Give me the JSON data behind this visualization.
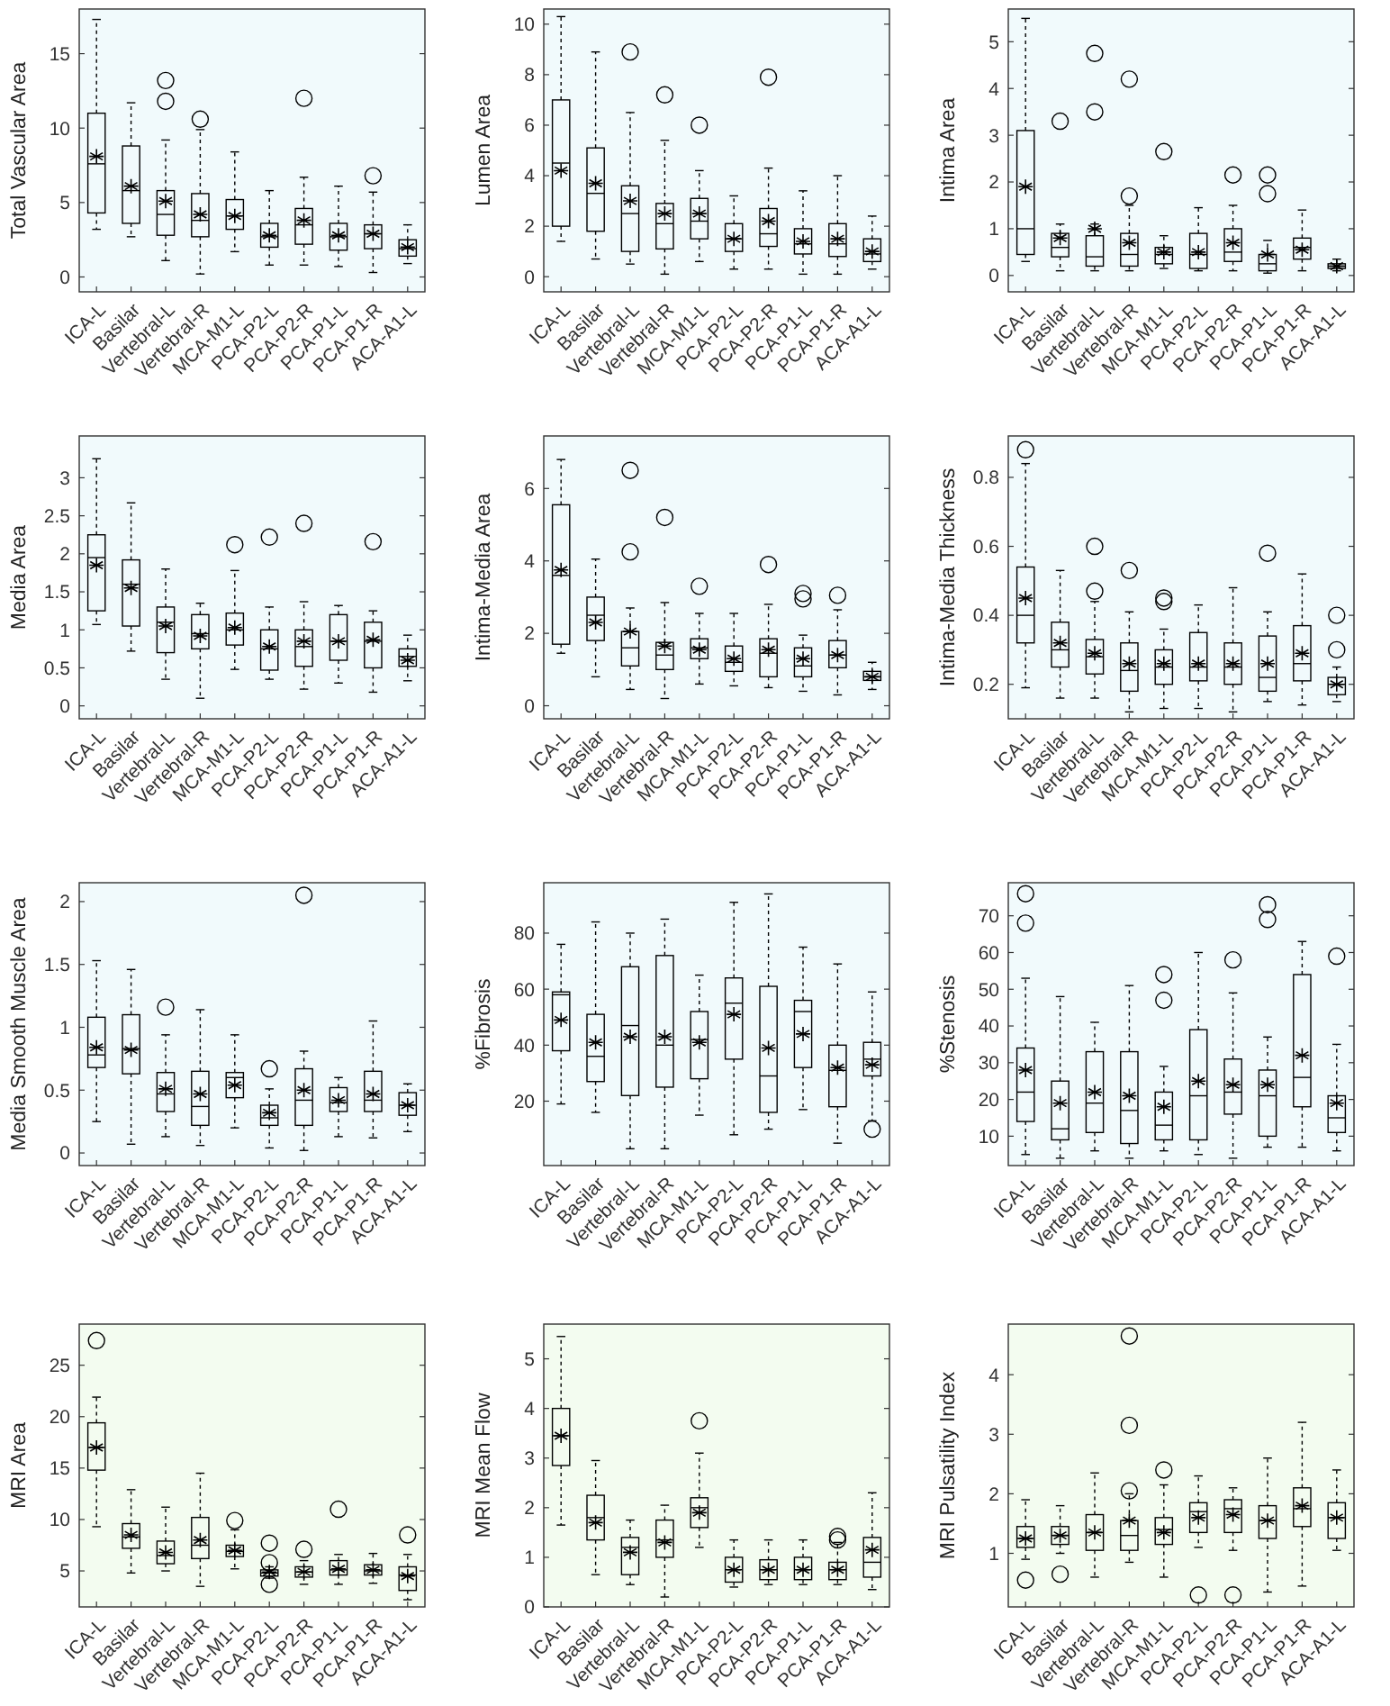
{
  "chart_data": [
    {
      "type": "box",
      "ylabel": "Total Vascular Area",
      "categories": [
        "ICA-L",
        "Basilar",
        "Vertebral-L",
        "Vertebral-R",
        "MCA-M1-L",
        "PCA-P2-L",
        "PCA-P2-R",
        "PCA-P1-L",
        "PCA-P1-R",
        "ACA-A1-L"
      ],
      "ylim": [
        -1,
        18
      ],
      "yticks": [
        0,
        5,
        10,
        15
      ],
      "boxes": [
        {
          "low": 3.2,
          "q1": 4.3,
          "median": 7.6,
          "q3": 11,
          "high": 17.3,
          "mean": 8.1
        },
        {
          "low": 2.7,
          "q1": 3.6,
          "median": 5.8,
          "q3": 8.8,
          "high": 11.7,
          "mean": 6.1
        },
        {
          "low": 1.1,
          "q1": 2.8,
          "median": 4.2,
          "q3": 5.8,
          "high": 9.2,
          "mean": 5.1,
          "outliers": [
            11.8,
            13.2
          ]
        },
        {
          "low": 0.2,
          "q1": 2.7,
          "median": 3.8,
          "q3": 5.6,
          "high": 9.9,
          "mean": 4.2,
          "outliers": [
            10.6
          ]
        },
        {
          "low": 1.7,
          "q1": 3.2,
          "median": 4.1,
          "q3": 5.2,
          "high": 8.4,
          "mean": 4.1
        },
        {
          "low": 0.8,
          "q1": 2,
          "median": 2.7,
          "q3": 3.6,
          "high": 5.8,
          "mean": 2.8
        },
        {
          "low": 0.8,
          "q1": 2.2,
          "median": 3.5,
          "q3": 4.6,
          "high": 6.7,
          "mean": 3.8,
          "outliers": [
            12
          ]
        },
        {
          "low": 0.7,
          "q1": 1.8,
          "median": 2.7,
          "q3": 3.6,
          "high": 6.1,
          "mean": 2.8
        },
        {
          "low": 0.3,
          "q1": 1.9,
          "median": 2.9,
          "q3": 3.5,
          "high": 5.7,
          "mean": 2.9,
          "outliers": [
            6.8
          ]
        },
        {
          "low": 0.9,
          "q1": 1.4,
          "median": 1.9,
          "q3": 2.5,
          "high": 3.5,
          "mean": 2
        }
      ]
    },
    {
      "type": "box",
      "ylabel": "Lumen Area",
      "categories": [
        "ICA-L",
        "Basilar",
        "Vertebral-L",
        "Vertebral-R",
        "MCA-M1-L",
        "PCA-P2-L",
        "PCA-P2-R",
        "PCA-P1-L",
        "PCA-P1-R",
        "ACA-A1-L"
      ],
      "ylim": [
        -0.6,
        10.6
      ],
      "yticks": [
        0,
        2,
        4,
        6,
        8,
        10
      ],
      "boxes": [
        {
          "low": 1.4,
          "q1": 2,
          "median": 4.5,
          "q3": 7,
          "high": 10.3,
          "mean": 4.2
        },
        {
          "low": 0.7,
          "q1": 1.8,
          "median": 3.3,
          "q3": 5.1,
          "high": 8.9,
          "mean": 3.7
        },
        {
          "low": 0.5,
          "q1": 1,
          "median": 2.5,
          "q3": 3.6,
          "high": 6.5,
          "mean": 3,
          "outliers": [
            8.9
          ]
        },
        {
          "low": 0.1,
          "q1": 1.1,
          "median": 2.1,
          "q3": 2.9,
          "high": 5.4,
          "mean": 2.5,
          "outliers": [
            7.2
          ]
        },
        {
          "low": 0.6,
          "q1": 1.5,
          "median": 2.2,
          "q3": 3.1,
          "high": 4.2,
          "mean": 2.5,
          "outliers": [
            6
          ]
        },
        {
          "low": 0.3,
          "q1": 1,
          "median": 1.5,
          "q3": 2.1,
          "high": 3.2,
          "mean": 1.5
        },
        {
          "low": 0.3,
          "q1": 1.2,
          "median": 1.7,
          "q3": 2.7,
          "high": 4.3,
          "mean": 2.2,
          "outliers": [
            7.9
          ]
        },
        {
          "low": 0.1,
          "q1": 0.9,
          "median": 1.3,
          "q3": 1.9,
          "high": 3.4,
          "mean": 1.4
        },
        {
          "low": 0.1,
          "q1": 0.8,
          "median": 1.3,
          "q3": 2.1,
          "high": 4,
          "mean": 1.5
        },
        {
          "low": 0.3,
          "q1": 0.6,
          "median": 0.9,
          "q3": 1.5,
          "high": 2.4,
          "mean": 1
        }
      ]
    },
    {
      "type": "box",
      "ylabel": "Intima Area",
      "categories": [
        "ICA-L",
        "Basilar",
        "Vertebral-L",
        "Vertebral-R",
        "MCA-M1-L",
        "PCA-P2-L",
        "PCA-P2-R",
        "PCA-P1-L",
        "PCA-P1-R",
        "ACA-A1-L"
      ],
      "ylim": [
        -0.35,
        5.7
      ],
      "yticks": [
        0,
        1,
        2,
        3,
        4,
        5
      ],
      "boxes": [
        {
          "low": 0.3,
          "q1": 0.45,
          "median": 1,
          "q3": 3.1,
          "high": 5.5,
          "mean": 1.9
        },
        {
          "low": 0.1,
          "q1": 0.4,
          "median": 0.6,
          "q3": 0.9,
          "high": 1.1,
          "mean": 0.8,
          "outliers": [
            3.3
          ]
        },
        {
          "low": 0.1,
          "q1": 0.2,
          "median": 0.4,
          "q3": 0.85,
          "high": 1.1,
          "mean": 1,
          "outliers": [
            3.5,
            4.75
          ]
        },
        {
          "low": 0.1,
          "q1": 0.2,
          "median": 0.45,
          "q3": 0.9,
          "high": 1.5,
          "mean": 0.7,
          "outliers": [
            1.7,
            4.2
          ]
        },
        {
          "low": 0.15,
          "q1": 0.25,
          "median": 0.45,
          "q3": 0.6,
          "high": 0.85,
          "mean": 0.5,
          "outliers": [
            2.65
          ]
        },
        {
          "low": 0.1,
          "q1": 0.15,
          "median": 0.45,
          "q3": 0.9,
          "high": 1.45,
          "mean": 0.5
        },
        {
          "low": 0.1,
          "q1": 0.3,
          "median": 0.5,
          "q3": 1,
          "high": 1.5,
          "mean": 0.7,
          "outliers": [
            2.15
          ]
        },
        {
          "low": 0.05,
          "q1": 0.1,
          "median": 0.25,
          "q3": 0.45,
          "high": 0.75,
          "mean": 0.45,
          "outliers": [
            1.75,
            2.15
          ]
        },
        {
          "low": 0.1,
          "q1": 0.35,
          "median": 0.6,
          "q3": 0.8,
          "high": 1.4,
          "mean": 0.55
        },
        {
          "low": 0.1,
          "q1": 0.15,
          "median": 0.2,
          "q3": 0.25,
          "high": 0.35,
          "mean": 0.2
        }
      ]
    },
    {
      "type": "box",
      "ylabel": "Media Area",
      "categories": [
        "ICA-L",
        "Basilar",
        "Vertebral-L",
        "Vertebral-R",
        "MCA-M1-L",
        "PCA-P2-L",
        "PCA-P2-R",
        "PCA-P1-L",
        "PCA-P1-R",
        "ACA-A1-L"
      ],
      "ylim": [
        -0.17,
        3.55
      ],
      "yticks": [
        0,
        0.5,
        1,
        1.5,
        2,
        2.5,
        3
      ],
      "boxes": [
        {
          "low": 1.07,
          "q1": 1.25,
          "median": 1.95,
          "q3": 2.25,
          "high": 3.25,
          "mean": 1.85
        },
        {
          "low": 0.72,
          "q1": 1.05,
          "median": 1.6,
          "q3": 1.92,
          "high": 2.67,
          "mean": 1.55
        },
        {
          "low": 0.35,
          "q1": 0.7,
          "median": 1.1,
          "q3": 1.3,
          "high": 1.8,
          "mean": 1.05
        },
        {
          "low": 0.1,
          "q1": 0.75,
          "median": 0.95,
          "q3": 1.2,
          "high": 1.35,
          "mean": 0.92
        },
        {
          "low": 0.48,
          "q1": 0.8,
          "median": 1,
          "q3": 1.22,
          "high": 1.78,
          "mean": 1.03,
          "outliers": [
            2.12
          ]
        },
        {
          "low": 0.35,
          "q1": 0.47,
          "median": 0.75,
          "q3": 1,
          "high": 1.3,
          "mean": 0.78,
          "outliers": [
            2.22
          ]
        },
        {
          "low": 0.22,
          "q1": 0.52,
          "median": 0.78,
          "q3": 1,
          "high": 1.37,
          "mean": 0.85,
          "outliers": [
            2.4
          ]
        },
        {
          "low": 0.3,
          "q1": 0.6,
          "median": 0.85,
          "q3": 1.2,
          "high": 1.32,
          "mean": 0.85
        },
        {
          "low": 0.18,
          "q1": 0.5,
          "median": 0.85,
          "q3": 1.1,
          "high": 1.25,
          "mean": 0.87,
          "outliers": [
            2.16
          ]
        },
        {
          "low": 0.33,
          "q1": 0.52,
          "median": 0.65,
          "q3": 0.75,
          "high": 0.93,
          "mean": 0.6
        }
      ]
    },
    {
      "type": "box",
      "ylabel": "Intima-Media Area",
      "categories": [
        "ICA-L",
        "Basilar",
        "Vertebral-L",
        "Vertebral-R",
        "MCA-M1-L",
        "PCA-P2-L",
        "PCA-P2-R",
        "PCA-P1-L",
        "PCA-P1-R",
        "ACA-A1-L"
      ],
      "ylim": [
        -0.36,
        7.45
      ],
      "yticks": [
        0,
        2,
        4,
        6
      ],
      "boxes": [
        {
          "low": 1.45,
          "q1": 1.7,
          "median": 3.6,
          "q3": 5.55,
          "high": 6.8,
          "mean": 3.75
        },
        {
          "low": 0.8,
          "q1": 1.8,
          "median": 2.5,
          "q3": 3,
          "high": 4.05,
          "mean": 2.3
        },
        {
          "low": 0.45,
          "q1": 1.1,
          "median": 1.6,
          "q3": 2.05,
          "high": 2.7,
          "mean": 2.05,
          "outliers": [
            4.25,
            6.5
          ]
        },
        {
          "low": 0.2,
          "q1": 1,
          "median": 1.4,
          "q3": 1.75,
          "high": 2.85,
          "mean": 1.65,
          "outliers": [
            5.2
          ]
        },
        {
          "low": 0.6,
          "q1": 1.3,
          "median": 1.6,
          "q3": 1.85,
          "high": 2.55,
          "mean": 1.55,
          "outliers": [
            3.3
          ]
        },
        {
          "low": 0.55,
          "q1": 0.95,
          "median": 1.2,
          "q3": 1.65,
          "high": 2.55,
          "mean": 1.3
        },
        {
          "low": 0.5,
          "q1": 0.8,
          "median": 1.45,
          "q3": 1.85,
          "high": 2.8,
          "mean": 1.55,
          "outliers": [
            3.9
          ]
        },
        {
          "low": 0.4,
          "q1": 0.8,
          "median": 1.1,
          "q3": 1.6,
          "high": 1.95,
          "mean": 1.3,
          "outliers": [
            2.95,
            3.1
          ]
        },
        {
          "low": 0.3,
          "q1": 1.05,
          "median": 1.4,
          "q3": 1.8,
          "high": 2.65,
          "mean": 1.4,
          "outliers": [
            3.05
          ]
        },
        {
          "low": 0.45,
          "q1": 0.7,
          "median": 0.8,
          "q3": 0.95,
          "high": 1.2,
          "mean": 0.8
        }
      ]
    },
    {
      "type": "box",
      "ylabel": "Intima-Media Thickness",
      "categories": [
        "ICA-L",
        "Basilar",
        "Vertebral-L",
        "Vertebral-R",
        "MCA-M1-L",
        "PCA-P2-L",
        "PCA-P2-R",
        "PCA-P1-L",
        "PCA-P1-R",
        "ACA-A1-L"
      ],
      "ylim": [
        0.1,
        0.92
      ],
      "yticks": [
        0.2,
        0.4,
        0.6,
        0.8
      ],
      "boxes": [
        {
          "low": 0.19,
          "q1": 0.32,
          "median": 0.4,
          "q3": 0.54,
          "high": 0.84,
          "mean": 0.45,
          "outliers": [
            0.88
          ]
        },
        {
          "low": 0.16,
          "q1": 0.25,
          "median": 0.3,
          "q3": 0.38,
          "high": 0.53,
          "mean": 0.32
        },
        {
          "low": 0.16,
          "q1": 0.23,
          "median": 0.28,
          "q3": 0.33,
          "high": 0.44,
          "mean": 0.29,
          "outliers": [
            0.47,
            0.6
          ]
        },
        {
          "low": 0.12,
          "q1": 0.18,
          "median": 0.24,
          "q3": 0.32,
          "high": 0.41,
          "mean": 0.26,
          "outliers": [
            0.53
          ]
        },
        {
          "low": 0.13,
          "q1": 0.2,
          "median": 0.25,
          "q3": 0.3,
          "high": 0.36,
          "mean": 0.26,
          "outliers": [
            0.44,
            0.45
          ]
        },
        {
          "low": 0.13,
          "q1": 0.21,
          "median": 0.25,
          "q3": 0.35,
          "high": 0.43,
          "mean": 0.26
        },
        {
          "low": 0.12,
          "q1": 0.2,
          "median": 0.25,
          "q3": 0.32,
          "high": 0.48,
          "mean": 0.26
        },
        {
          "low": 0.15,
          "q1": 0.18,
          "median": 0.22,
          "q3": 0.34,
          "high": 0.41,
          "mean": 0.26,
          "outliers": [
            0.58
          ]
        },
        {
          "low": 0.14,
          "q1": 0.21,
          "median": 0.26,
          "q3": 0.37,
          "high": 0.52,
          "mean": 0.29
        },
        {
          "low": 0.15,
          "q1": 0.17,
          "median": 0.2,
          "q3": 0.22,
          "high": 0.25,
          "mean": 0.2,
          "outliers": [
            0.3,
            0.4
          ]
        }
      ]
    },
    {
      "type": "box",
      "ylabel": "Media Smooth Muscle Area",
      "categories": [
        "ICA-L",
        "Basilar",
        "Vertebral-L",
        "Vertebral-R",
        "MCA-M1-L",
        "PCA-P2-L",
        "PCA-P2-R",
        "PCA-P1-L",
        "PCA-P1-R",
        "ACA-A1-L"
      ],
      "ylim": [
        -0.1,
        2.15
      ],
      "yticks": [
        0,
        0.5,
        1,
        1.5,
        2
      ],
      "boxes": [
        {
          "low": 0.25,
          "q1": 0.68,
          "median": 0.78,
          "q3": 1.08,
          "high": 1.53,
          "mean": 0.84
        },
        {
          "low": 0.07,
          "q1": 0.63,
          "median": 0.83,
          "q3": 1.1,
          "high": 1.46,
          "mean": 0.82
        },
        {
          "low": 0.13,
          "q1": 0.33,
          "median": 0.47,
          "q3": 0.64,
          "high": 0.94,
          "mean": 0.51,
          "outliers": [
            1.16
          ]
        },
        {
          "low": 0.06,
          "q1": 0.22,
          "median": 0.37,
          "q3": 0.65,
          "high": 1.14,
          "mean": 0.47
        },
        {
          "low": 0.2,
          "q1": 0.44,
          "median": 0.6,
          "q3": 0.64,
          "high": 0.94,
          "mean": 0.54
        },
        {
          "low": 0.04,
          "q1": 0.22,
          "median": 0.28,
          "q3": 0.38,
          "high": 0.51,
          "mean": 0.32,
          "outliers": [
            0.67
          ]
        },
        {
          "low": 0.02,
          "q1": 0.22,
          "median": 0.42,
          "q3": 0.67,
          "high": 0.81,
          "mean": 0.5,
          "outliers": [
            2.05
          ]
        },
        {
          "low": 0.13,
          "q1": 0.33,
          "median": 0.4,
          "q3": 0.52,
          "high": 0.6,
          "mean": 0.42
        },
        {
          "low": 0.12,
          "q1": 0.33,
          "median": 0.42,
          "q3": 0.65,
          "high": 1.05,
          "mean": 0.47
        },
        {
          "low": 0.17,
          "q1": 0.3,
          "median": 0.38,
          "q3": 0.48,
          "high": 0.55,
          "mean": 0.38
        }
      ]
    },
    {
      "type": "box",
      "ylabel": "%Fibrosis",
      "categories": [
        "ICA-L",
        "Basilar",
        "Vertebral-L",
        "Vertebral-R",
        "MCA-M1-L",
        "PCA-P2-L",
        "PCA-P2-R",
        "PCA-P1-L",
        "PCA-P1-R",
        "ACA-A1-L"
      ],
      "ylim": [
        -3,
        98
      ],
      "yticks": [
        20,
        40,
        60,
        80
      ],
      "boxes": [
        {
          "low": 19,
          "q1": 38,
          "median": 58,
          "q3": 59,
          "high": 76,
          "mean": 49
        },
        {
          "low": 16,
          "q1": 27,
          "median": 36,
          "q3": 51,
          "high": 84,
          "mean": 41
        },
        {
          "low": 3,
          "q1": 22,
          "median": 47,
          "q3": 68,
          "high": 80,
          "mean": 43
        },
        {
          "low": 3,
          "q1": 25,
          "median": 40,
          "q3": 72,
          "high": 85,
          "mean": 43
        },
        {
          "low": 15,
          "q1": 28,
          "median": 42,
          "q3": 52,
          "high": 65,
          "mean": 41
        },
        {
          "low": 8,
          "q1": 35,
          "median": 55,
          "q3": 64,
          "high": 91,
          "mean": 51
        },
        {
          "low": 10,
          "q1": 16,
          "median": 29,
          "q3": 61,
          "high": 94,
          "mean": 39
        },
        {
          "low": 17,
          "q1": 32,
          "median": 52,
          "q3": 56,
          "high": 75,
          "mean": 44
        },
        {
          "low": 5,
          "q1": 18,
          "median": 31,
          "q3": 40,
          "high": 69,
          "mean": 32
        },
        {
          "low": 13,
          "q1": 29,
          "median": 35,
          "q3": 41,
          "high": 59,
          "mean": 33,
          "outliers": [
            10
          ]
        }
      ]
    },
    {
      "type": "box",
      "ylabel": "%Stenosis",
      "categories": [
        "ICA-L",
        "Basilar",
        "Vertebral-L",
        "Vertebral-R",
        "MCA-M1-L",
        "PCA-P2-L",
        "PCA-P2-R",
        "PCA-P1-L",
        "PCA-P1-R",
        "ACA-A1-L"
      ],
      "ylim": [
        2,
        79
      ],
      "yticks": [
        10,
        20,
        30,
        40,
        50,
        60,
        70
      ],
      "boxes": [
        {
          "low": 5,
          "q1": 14,
          "median": 22,
          "q3": 34,
          "high": 53,
          "mean": 28,
          "outliers": [
            68,
            76
          ]
        },
        {
          "low": 4,
          "q1": 9,
          "median": 12,
          "q3": 25,
          "high": 48,
          "mean": 19
        },
        {
          "low": 6,
          "q1": 11,
          "median": 19,
          "q3": 33,
          "high": 41,
          "mean": 22
        },
        {
          "low": 4,
          "q1": 8,
          "median": 17,
          "q3": 33,
          "high": 51,
          "mean": 21
        },
        {
          "low": 6,
          "q1": 9,
          "median": 13,
          "q3": 22,
          "high": 29,
          "mean": 18,
          "outliers": [
            47,
            54
          ]
        },
        {
          "low": 5,
          "q1": 9,
          "median": 21,
          "q3": 39,
          "high": 60,
          "mean": 25
        },
        {
          "low": 4,
          "q1": 16,
          "median": 22,
          "q3": 31,
          "high": 49,
          "mean": 24,
          "outliers": [
            58
          ]
        },
        {
          "low": 7,
          "q1": 10,
          "median": 21,
          "q3": 28,
          "high": 37,
          "mean": 24,
          "outliers": [
            69,
            73
          ]
        },
        {
          "low": 7,
          "q1": 18,
          "median": 26,
          "q3": 54,
          "high": 63,
          "mean": 32
        },
        {
          "low": 6,
          "q1": 11,
          "median": 15,
          "q3": 21,
          "high": 35,
          "mean": 19,
          "outliers": [
            59
          ]
        }
      ]
    },
    {
      "type": "box",
      "ylabel": "MRI Area",
      "categories": [
        "ICA-L",
        "Basilar",
        "Vertebral-L",
        "Vertebral-R",
        "MCA-M1-L",
        "PCA-P2-L",
        "PCA-P2-R",
        "PCA-P1-L",
        "PCA-P1-R",
        "ACA-A1-L"
      ],
      "ylim": [
        1.5,
        29
      ],
      "yticks": [
        5,
        10,
        15,
        20,
        25
      ],
      "boxes": [
        {
          "low": 9.3,
          "q1": 14.8,
          "median": 17,
          "q3": 19.4,
          "high": 21.9,
          "mean": 17,
          "outliers": [
            27.4
          ]
        },
        {
          "low": 4.8,
          "q1": 7.2,
          "median": 8.3,
          "q3": 9.6,
          "high": 12.9,
          "mean": 8.5
        },
        {
          "low": 5,
          "q1": 5.7,
          "median": 6.5,
          "q3": 7.9,
          "high": 11.2,
          "mean": 6.8
        },
        {
          "low": 3.5,
          "q1": 6.2,
          "median": 7.5,
          "q3": 10.2,
          "high": 14.5,
          "mean": 8
        },
        {
          "low": 5.2,
          "q1": 6.4,
          "median": 6.9,
          "q3": 7.5,
          "high": 9,
          "mean": 7,
          "outliers": [
            9.9
          ]
        },
        {
          "low": 4.3,
          "q1": 4.5,
          "median": 4.8,
          "q3": 5.1,
          "high": 5.4,
          "mean": 4.9,
          "outliers": [
            3.7,
            5.8,
            7.7
          ]
        },
        {
          "low": 3.7,
          "q1": 4.4,
          "median": 4.9,
          "q3": 5.4,
          "high": 6,
          "mean": 4.9,
          "outliers": [
            7.1
          ]
        },
        {
          "low": 3.7,
          "q1": 4.6,
          "median": 5.1,
          "q3": 6,
          "high": 6.6,
          "mean": 5.2,
          "outliers": [
            11
          ]
        },
        {
          "low": 3.8,
          "q1": 4.6,
          "median": 5,
          "q3": 5.6,
          "high": 6.7,
          "mean": 5.1
        },
        {
          "low": 2.2,
          "q1": 3.1,
          "median": 4.6,
          "q3": 5.4,
          "high": 6.6,
          "mean": 4.5,
          "outliers": [
            8.5
          ]
        }
      ]
    },
    {
      "type": "box",
      "ylabel": "MRI Mean Flow",
      "categories": [
        "ICA-L",
        "Basilar",
        "Vertebral-L",
        "Vertebral-R",
        "MCA-M1-L",
        "PCA-P2-L",
        "PCA-P2-R",
        "PCA-P1-L",
        "PCA-P1-R",
        "ACA-A1-L"
      ],
      "ylim": [
        0,
        5.7
      ],
      "yticks": [
        0,
        1,
        2,
        3,
        4,
        5
      ],
      "boxes": [
        {
          "low": 1.65,
          "q1": 2.85,
          "median": 3.45,
          "q3": 4,
          "high": 5.45,
          "mean": 3.45
        },
        {
          "low": 0.65,
          "q1": 1.35,
          "median": 1.8,
          "q3": 2.25,
          "high": 2.95,
          "mean": 1.7
        },
        {
          "low": 0.45,
          "q1": 0.65,
          "median": 1.2,
          "q3": 1.4,
          "high": 1.75,
          "mean": 1.1
        },
        {
          "low": 0.2,
          "q1": 1,
          "median": 1.35,
          "q3": 1.75,
          "high": 2.05,
          "mean": 1.3
        },
        {
          "low": 1.2,
          "q1": 1.6,
          "median": 2,
          "q3": 2.2,
          "high": 3.1,
          "mean": 1.9,
          "outliers": [
            3.75
          ]
        },
        {
          "low": 0.4,
          "q1": 0.5,
          "median": 0.75,
          "q3": 1,
          "high": 1.35,
          "mean": 0.75
        },
        {
          "low": 0.45,
          "q1": 0.55,
          "median": 0.75,
          "q3": 0.95,
          "high": 1.35,
          "mean": 0.75
        },
        {
          "low": 0.45,
          "q1": 0.55,
          "median": 0.75,
          "q3": 1,
          "high": 1.35,
          "mean": 0.75
        },
        {
          "low": 0.45,
          "q1": 0.55,
          "median": 0.75,
          "q3": 0.9,
          "high": 1.3,
          "mean": 0.75,
          "outliers": [
            1.35,
            1.42
          ]
        },
        {
          "low": 0.35,
          "q1": 0.6,
          "median": 0.9,
          "q3": 1.4,
          "high": 2.3,
          "mean": 1.15
        }
      ]
    },
    {
      "type": "box",
      "ylabel": "MRI Pulsatility Index",
      "categories": [
        "ICA-L",
        "Basilar",
        "Vertebral-L",
        "Vertebral-R",
        "MCA-M1-L",
        "PCA-P2-L",
        "PCA-P2-R",
        "PCA-P1-L",
        "PCA-P1-R",
        "ACA-A1-L"
      ],
      "ylim": [
        0.1,
        4.85
      ],
      "yticks": [
        1,
        2,
        3,
        4
      ],
      "boxes": [
        {
          "low": 0.9,
          "q1": 1.1,
          "median": 1.25,
          "q3": 1.45,
          "high": 1.9,
          "mean": 1.25,
          "outliers": [
            0.55
          ]
        },
        {
          "low": 1,
          "q1": 1.15,
          "median": 1.3,
          "q3": 1.45,
          "high": 1.8,
          "mean": 1.3,
          "outliers": [
            0.65
          ]
        },
        {
          "low": 0.6,
          "q1": 1.05,
          "median": 1.35,
          "q3": 1.65,
          "high": 2.35,
          "mean": 1.35
        },
        {
          "low": 0.85,
          "q1": 1.05,
          "median": 1.3,
          "q3": 1.55,
          "high": 2,
          "mean": 1.55,
          "outliers": [
            2.05,
            3.15,
            4.65
          ]
        },
        {
          "low": 0.6,
          "q1": 1.15,
          "median": 1.4,
          "q3": 1.6,
          "high": 2.15,
          "mean": 1.35,
          "outliers": [
            2.4
          ]
        },
        {
          "low": 1.1,
          "q1": 1.35,
          "median": 1.7,
          "q3": 1.85,
          "high": 2.3,
          "mean": 1.6,
          "outliers": [
            0.3
          ]
        },
        {
          "low": 1.05,
          "q1": 1.35,
          "median": 1.75,
          "q3": 1.9,
          "high": 2.1,
          "mean": 1.65,
          "outliers": [
            0.3
          ]
        },
        {
          "low": 0.35,
          "q1": 1.25,
          "median": 1.55,
          "q3": 1.8,
          "high": 2.6,
          "mean": 1.55
        },
        {
          "low": 0.45,
          "q1": 1.45,
          "median": 1.75,
          "q3": 2.1,
          "high": 3.2,
          "mean": 1.8
        },
        {
          "low": 1.05,
          "q1": 1.25,
          "median": 1.6,
          "q3": 1.85,
          "high": 2.4,
          "mean": 1.6
        }
      ]
    }
  ]
}
